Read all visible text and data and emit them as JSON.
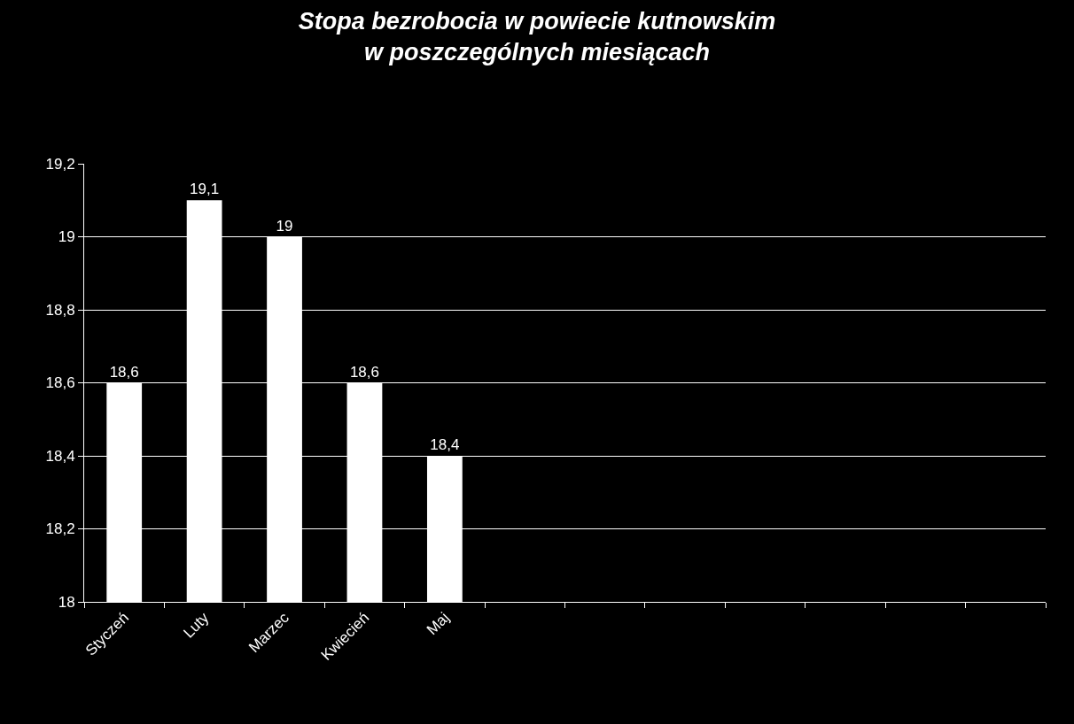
{
  "chart_data": {
    "type": "bar",
    "title": "Stopa bezrobocia w powiecie kutnowskim\nw poszczególnych miesiącach",
    "categories": [
      "Styczeń",
      "Luty",
      "Marzec",
      "Kwiecień",
      "Maj",
      null,
      null,
      null,
      null,
      null,
      null,
      null
    ],
    "values": [
      18.6,
      19.1,
      19,
      18.6,
      18.4,
      null,
      null,
      null,
      null,
      null,
      null,
      null
    ],
    "value_labels": [
      "18,6",
      "19,1",
      "19",
      "18,6",
      "18,4",
      null,
      null,
      null,
      null,
      null,
      null,
      null
    ],
    "color": "#ffffff",
    "ylim": [
      18,
      19.2
    ],
    "yticks": [
      18,
      {
        "value": 18.2,
        "label": "18,2"
      },
      {
        "value": 18.4,
        "label": "18,4"
      },
      {
        "value": 18.6,
        "label": "18,6"
      },
      {
        "value": 18.8,
        "label": "18,8"
      },
      19,
      {
        "value": 19.2,
        "label": "19,2"
      }
    ],
    "grid": "y",
    "legend": false
  }
}
